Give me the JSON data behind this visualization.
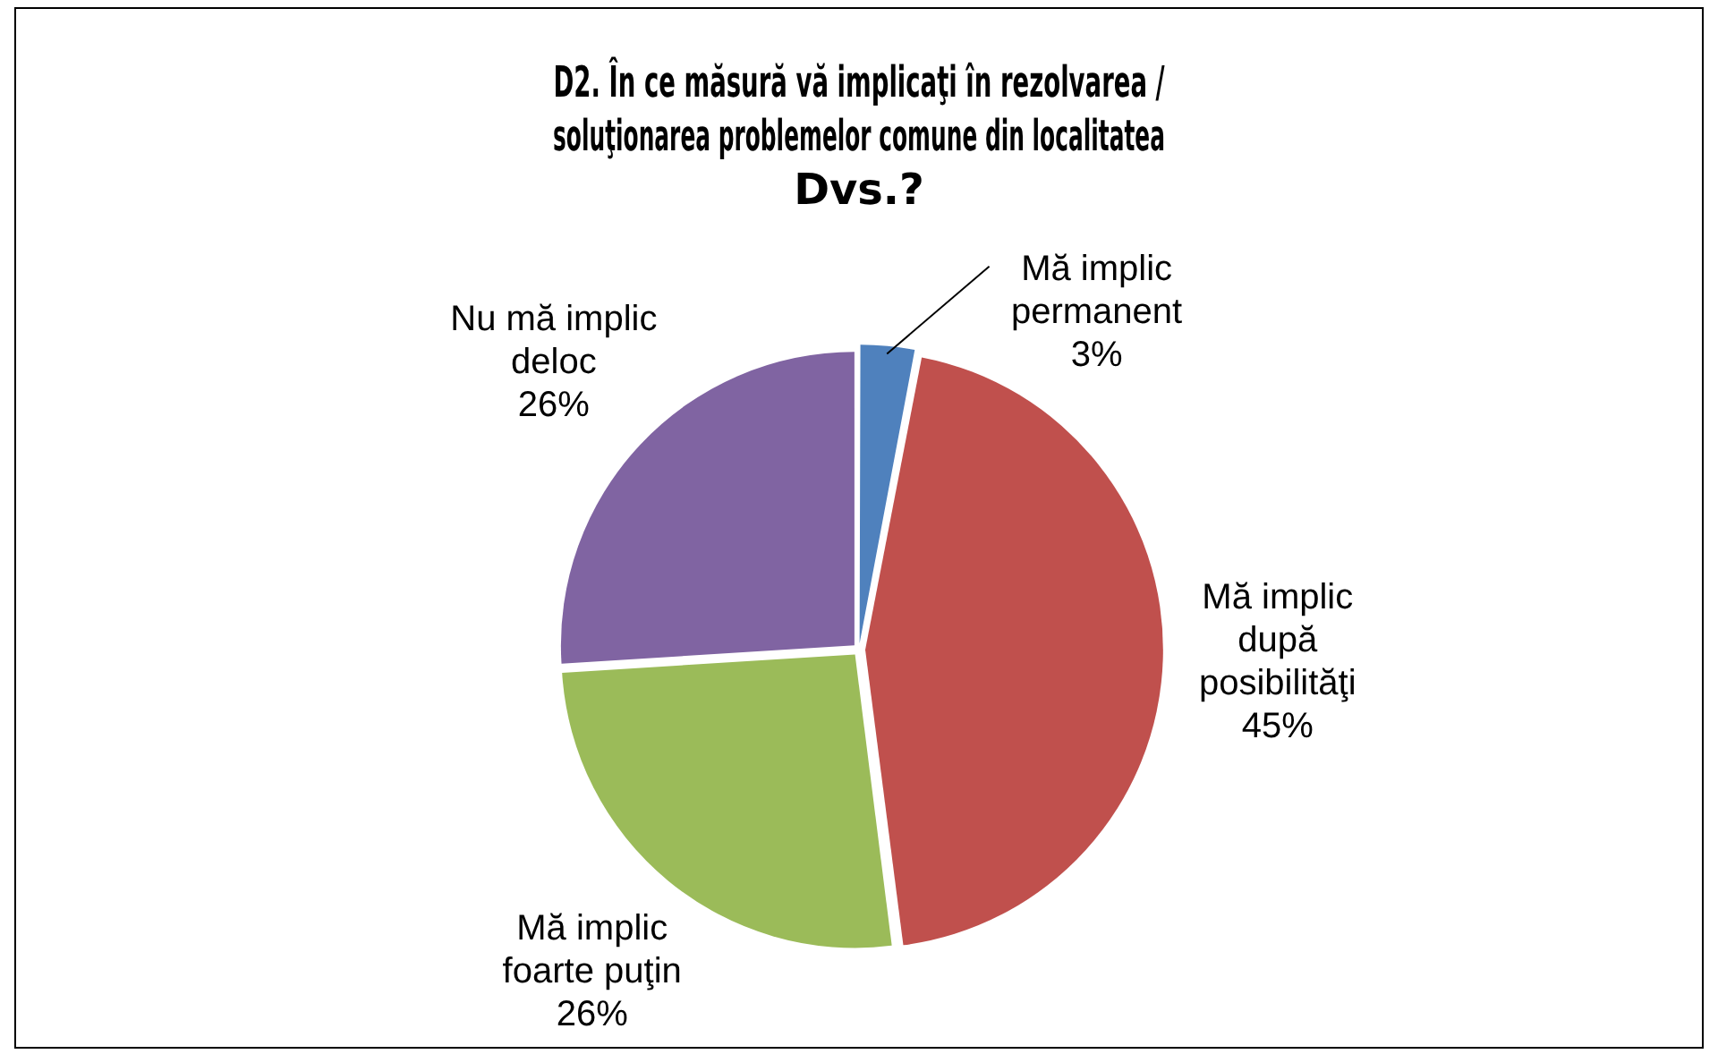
{
  "chart_data": {
    "type": "pie",
    "title": "D2. În ce măsură vă implicaţi în rezolvarea / soluţionarea problemelor comune din localitatea Dvs.?",
    "categories": [
      "Mă implic permanent",
      "Mă implic după posibilităţi",
      "Mă implic foarte puţin",
      "Nu mă implic deloc"
    ],
    "values": [
      3,
      45,
      26,
      26
    ],
    "colors": [
      "#4f81bd",
      "#c0504d",
      "#9bbb59",
      "#8064a2"
    ],
    "value_labels": [
      "3%",
      "45%",
      "26%",
      "26%"
    ],
    "legend": false
  }
}
